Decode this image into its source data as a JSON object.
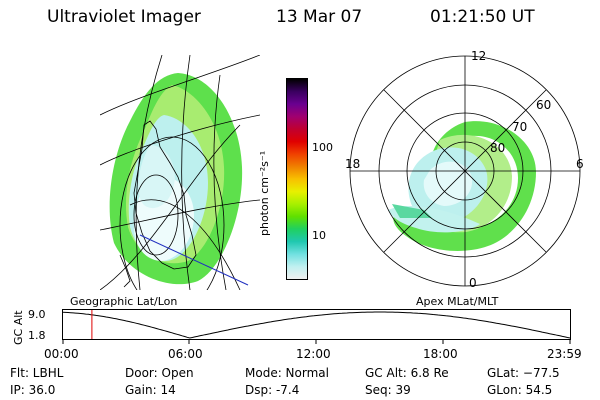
{
  "header": {
    "title": "Ultraviolet Imager",
    "date": "13 Mar 07",
    "time": "01:21:50 UT"
  },
  "colorbar": {
    "label": "photon cm⁻²s⁻¹",
    "ticks": [
      "100",
      "10"
    ],
    "colors": [
      "#000000",
      "#3a0060",
      "#6a0090",
      "#a00070",
      "#c00030",
      "#e00000",
      "#f04000",
      "#f08000",
      "#f8c000",
      "#e8f000",
      "#a8f000",
      "#60e000",
      "#20d060",
      "#20c8b0",
      "#70e0e0",
      "#c0f0f0",
      "#f0f0f0"
    ]
  },
  "left_panel": {
    "label": "Geographic Lat/Lon"
  },
  "right_panel": {
    "label": "Apex MLat/MLT",
    "mlt_labels": {
      "top": "12",
      "left": "18",
      "right": "6",
      "bottom": "0"
    },
    "lat_labels": [
      "60",
      "70",
      "80"
    ]
  },
  "timeline": {
    "ylabel": "GC Alt",
    "ytick_top": "9.0",
    "ytick_bottom": "1.8",
    "xticks": [
      "00:00",
      "06:00",
      "12:00",
      "18:00",
      "23:59"
    ],
    "current_time_fraction": 0.057
  },
  "info": {
    "filter": "Flt: LBHL",
    "ip": "IP: 36.0",
    "door": "Door: Open",
    "gain": "Gain: 14",
    "mode": "Mode: Normal",
    "dsp": "Dsp:   -7.4",
    "gc_alt": "GC Alt: 6.8 Re",
    "seq": "Seq: 39",
    "glat": "GLat: −77.5",
    "glon": "GLon:  54.5"
  }
}
